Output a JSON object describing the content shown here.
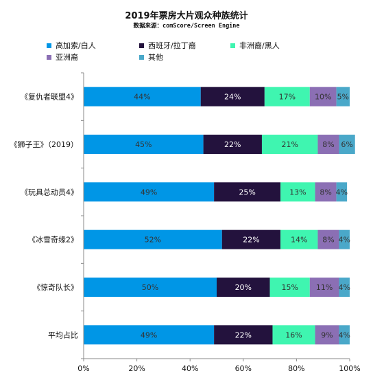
{
  "chart_data": {
    "type": "bar",
    "orientation": "horizontal",
    "stacked": true,
    "title": "2019年票房大片观众种族统计",
    "subtitle": "数据来源：comScore/Screen Engine",
    "categories": [
      "《复仇者联盟4》",
      "《狮子王》（2019）",
      "《玩具总动员4》",
      "《冰雪奇缘2》",
      "《惊奇队长》",
      "平均占比"
    ],
    "series": [
      {
        "name": "高加索/白人",
        "color": "#0096e6",
        "values": [
          44,
          45,
          49,
          52,
          50,
          49
        ],
        "labels": [
          "44%",
          "45%",
          "49%",
          "52%",
          "50%",
          "49%"
        ]
      },
      {
        "name": "西班牙/拉丁裔",
        "color": "#23123d",
        "values": [
          24,
          22,
          25,
          22,
          20,
          22
        ],
        "labels": [
          "24%",
          "22%",
          "25%",
          "22%",
          "20%",
          "22%"
        ]
      },
      {
        "name": "非洲裔/黑人",
        "color": "#3ff5b0",
        "values": [
          17,
          21,
          13,
          14,
          15,
          16
        ],
        "labels": [
          "17%",
          "21%",
          "13%",
          "14%",
          "15%",
          "16%"
        ]
      },
      {
        "name": "亚洲裔",
        "color": "#8b6fb4",
        "values": [
          10,
          8,
          8,
          8,
          11,
          9
        ],
        "labels": [
          "10%",
          "8%",
          "8%",
          "8%",
          "11%",
          "9%"
        ]
      },
      {
        "name": "其他",
        "color": "#4aa8c9",
        "values": [
          5,
          6,
          4,
          4,
          4,
          4
        ],
        "labels": [
          "5%",
          "6%",
          "4%",
          "4%",
          "4%",
          "4%"
        ]
      }
    ],
    "xlim": [
      0,
      100
    ],
    "xticks": [
      "0%",
      "20%",
      "40%",
      "60%",
      "80%",
      "100%"
    ],
    "legend_position": "top",
    "grid": false
  }
}
